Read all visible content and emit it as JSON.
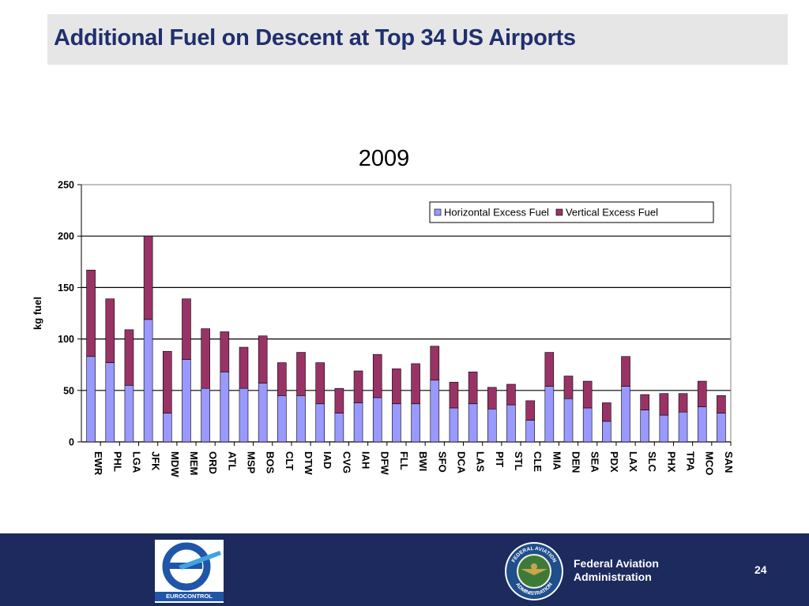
{
  "slide": {
    "title": "Additional Fuel on Descent at Top 34 US Airports",
    "page_number": "24"
  },
  "footer": {
    "org_line1": "Federal Aviation",
    "org_line2": "Administration",
    "eurocontrol_label": "EUROCONTROL",
    "seal_text_top": "FEDERAL AVIATION",
    "seal_text_bottom": "ADMINISTRATION"
  },
  "colors": {
    "title_text": "#1f2f6e",
    "title_bar": "#e6e6e6",
    "footer_bg": "#1c2a5e",
    "horizontal_fill": "#9999ff",
    "vertical_fill": "#993366"
  },
  "chart_data": {
    "type": "bar",
    "stacked": true,
    "title": "2009",
    "xlabel": "",
    "ylabel": "kg fuel",
    "ylim": [
      0,
      250
    ],
    "yticks": [
      0,
      50,
      100,
      150,
      200,
      250
    ],
    "grid": true,
    "legend_position": "top-right",
    "categories": [
      "EWR",
      "PHL",
      "LGA",
      "JFK",
      "MDW",
      "MEM",
      "ORD",
      "ATL",
      "MSP",
      "BOS",
      "CLT",
      "DTW",
      "IAD",
      "CVG",
      "IAH",
      "DFW",
      "FLL",
      "BWI",
      "SFO",
      "DCA",
      "LAS",
      "PIT",
      "STL",
      "CLE",
      "MIA",
      "DEN",
      "SEA",
      "PDX",
      "LAX",
      "SLC",
      "PHX",
      "TPA",
      "MCO",
      "SAN"
    ],
    "series": [
      {
        "name": "Horizontal Excess Fuel",
        "color": "#9999ff",
        "values": [
          83,
          77,
          55,
          119,
          28,
          80,
          52,
          68,
          52,
          57,
          45,
          45,
          37,
          28,
          38,
          43,
          37,
          37,
          60,
          33,
          37,
          32,
          36,
          21,
          54,
          42,
          33,
          20,
          54,
          31,
          26,
          29,
          34,
          28
        ]
      },
      {
        "name": "Vertical Excess Fuel",
        "color": "#993366",
        "values": [
          84,
          62,
          54,
          81,
          60,
          59,
          58,
          39,
          40,
          46,
          32,
          42,
          40,
          24,
          31,
          42,
          34,
          39,
          33,
          25,
          31,
          21,
          20,
          19,
          33,
          22,
          26,
          18,
          29,
          15,
          21,
          18,
          25,
          17
        ]
      }
    ]
  }
}
